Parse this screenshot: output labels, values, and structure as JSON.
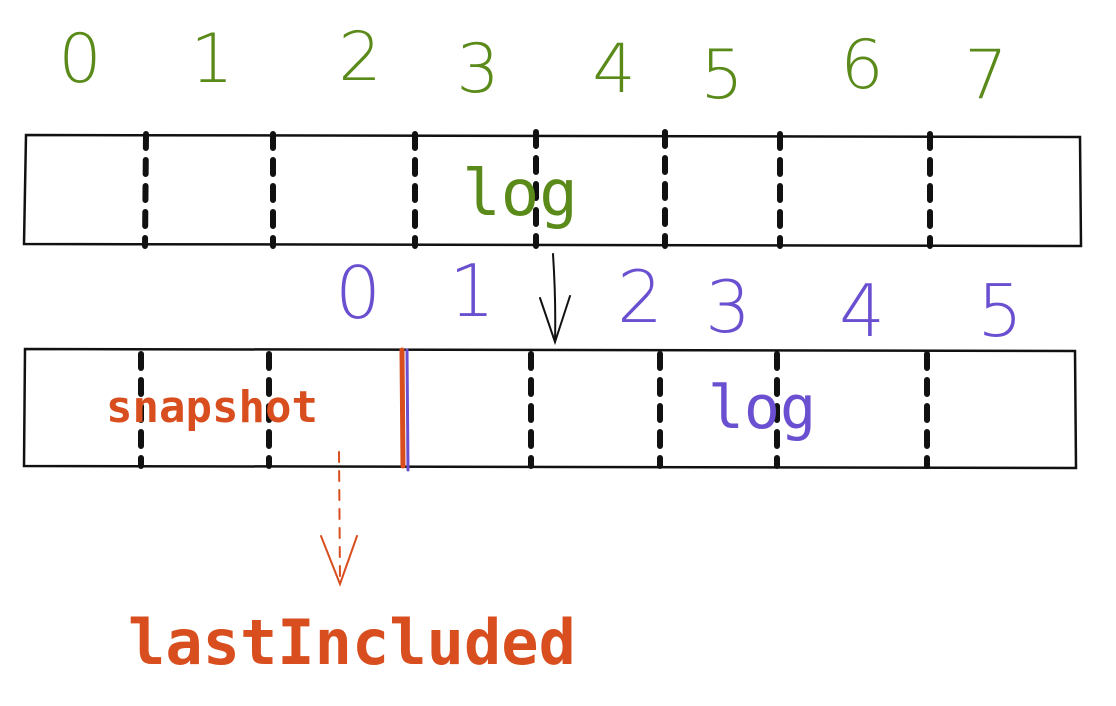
{
  "colors": {
    "top_index": "#5a8a1a",
    "log_top": "#5a8a1a",
    "bottom_index": "#6a4fd0",
    "log_bottom": "#6a4fd0",
    "snapshot": "#d84e1f",
    "ink": "#111111"
  },
  "top_indices": [
    "0",
    "1",
    "2",
    "3",
    "4",
    "5",
    "6",
    "7"
  ],
  "top_log_label": "log",
  "bottom_indices": [
    "0",
    "1",
    "2",
    "3",
    "4",
    "5"
  ],
  "bottom_log_label": "log",
  "snapshot_label": "snapshot",
  "last_included_label": "lastIncluded"
}
